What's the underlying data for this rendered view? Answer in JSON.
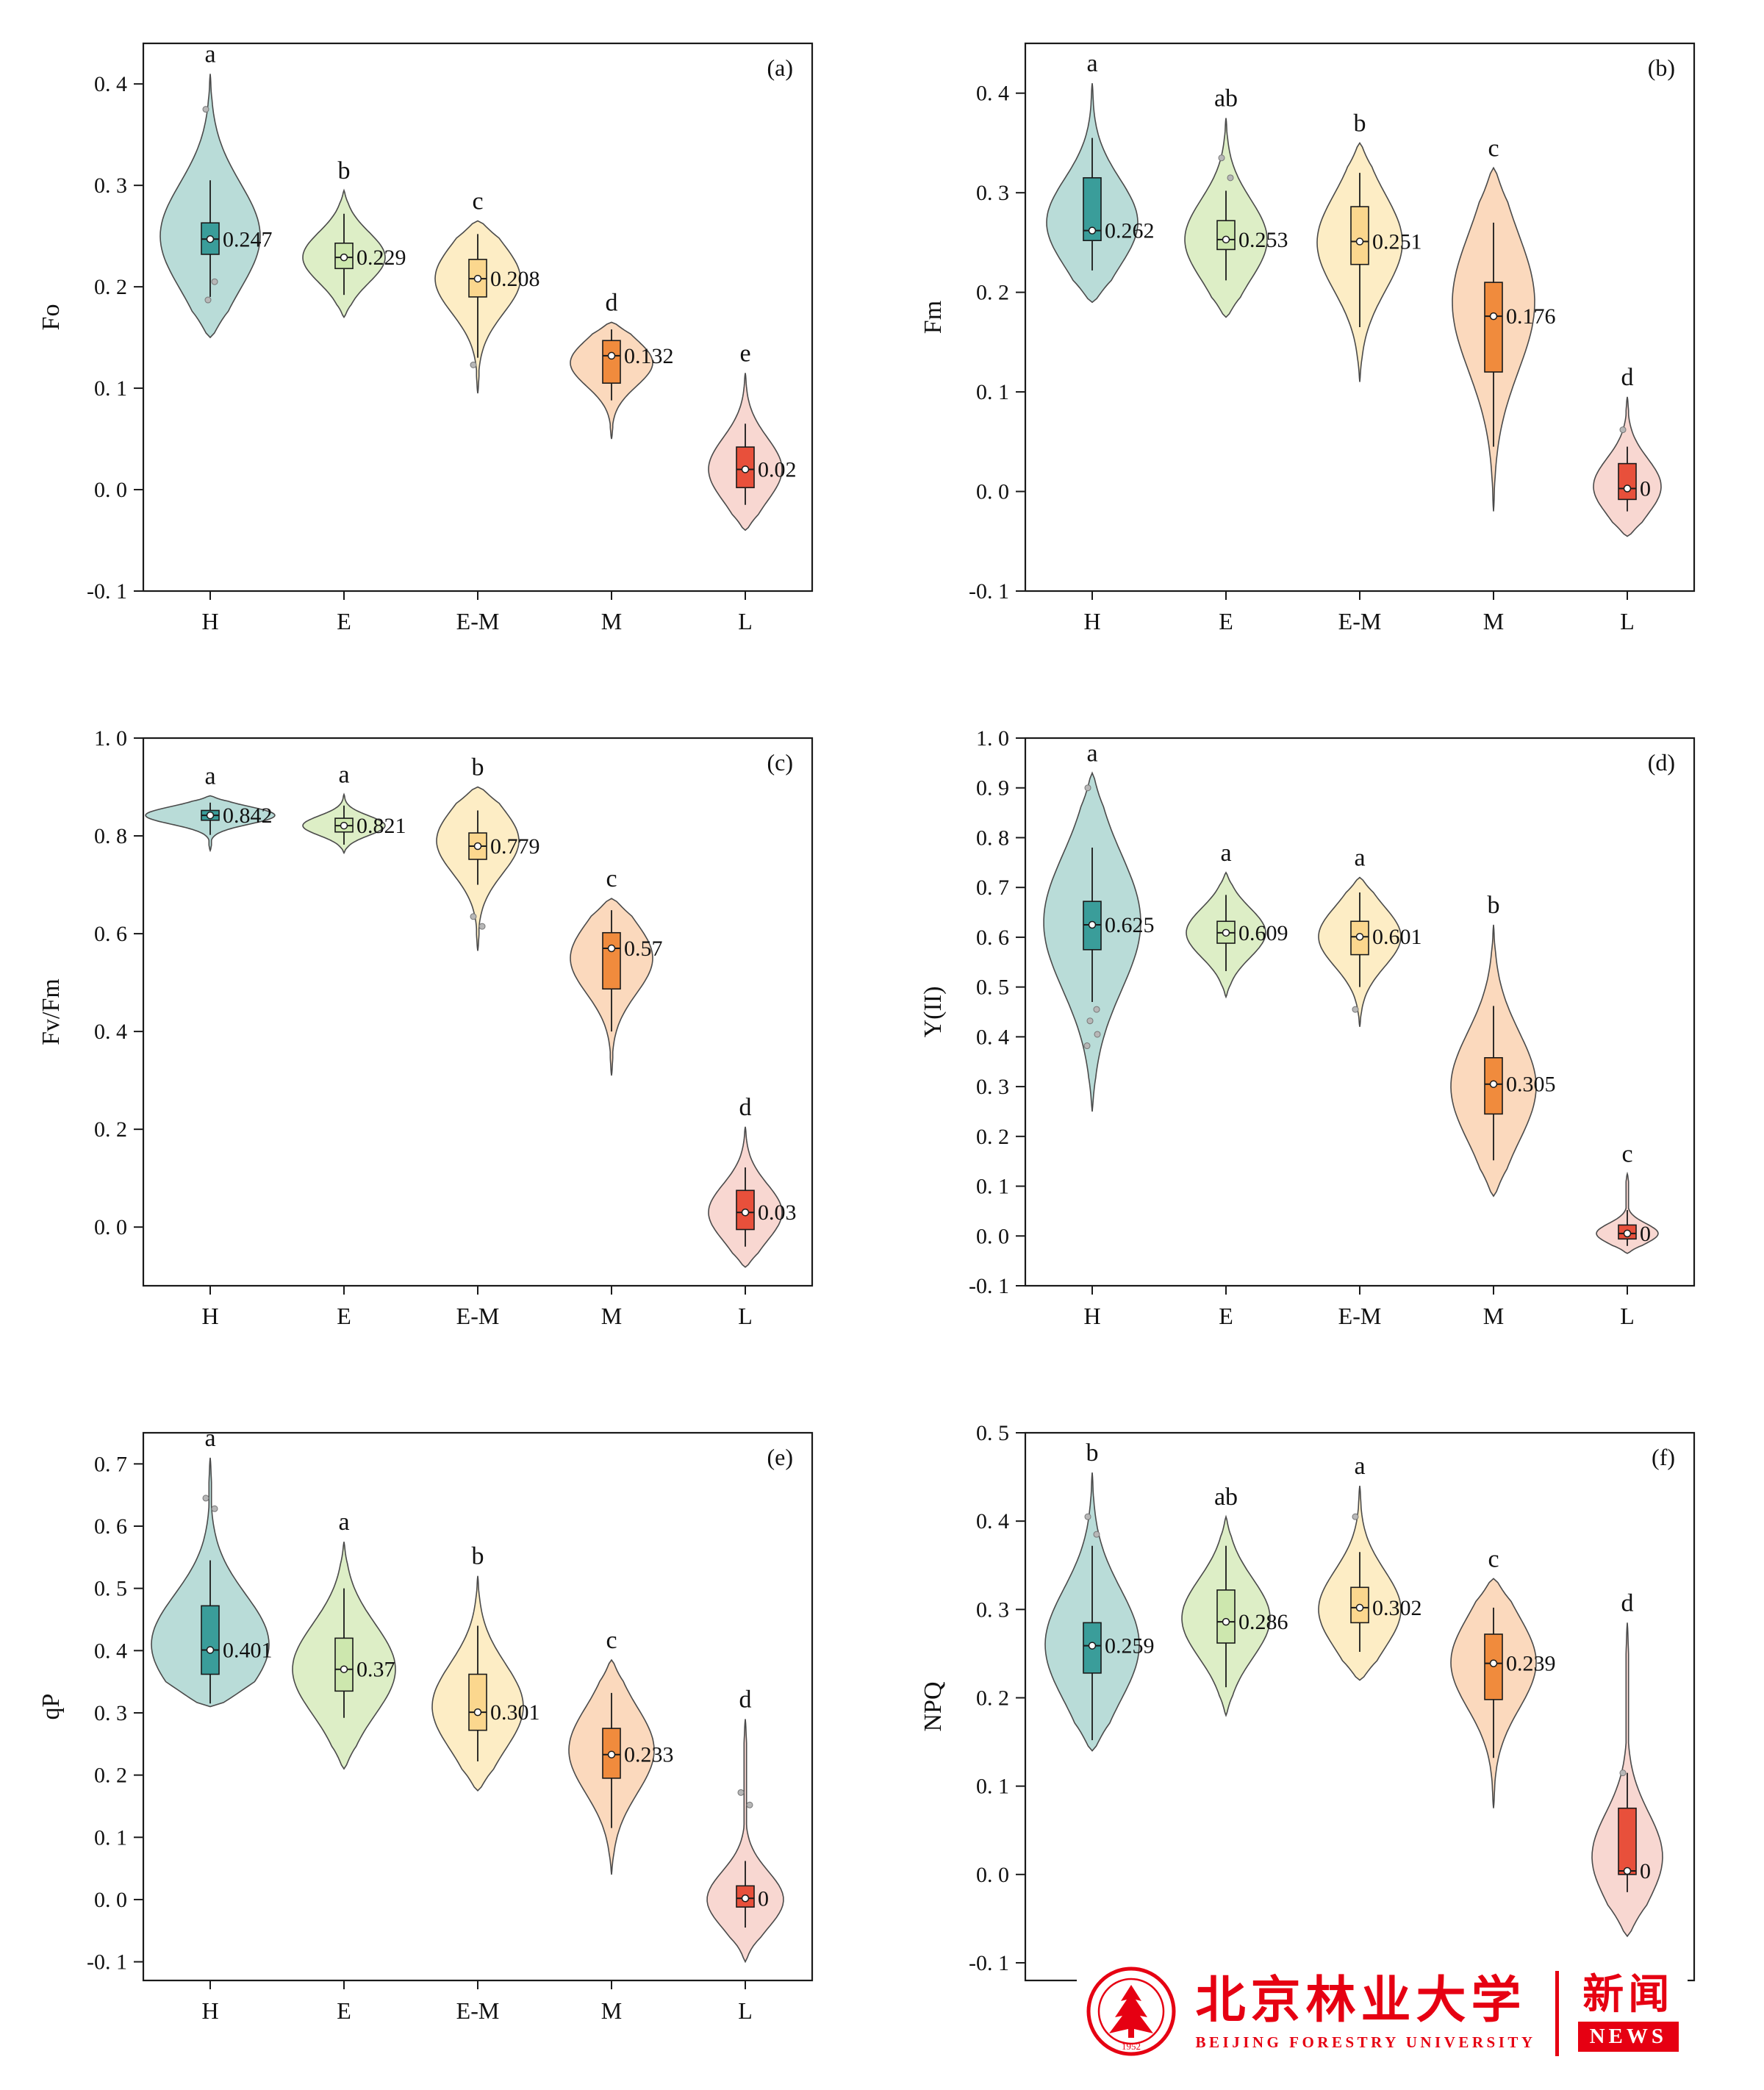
{
  "page": {
    "background": "#ffffff"
  },
  "palette": {
    "violin_fill": {
      "H": "#b9dcd8",
      "E": "#ddeec6",
      "E-M": "#fdedc5",
      "M": "#fbd9bd",
      "L": "#f8d7d1"
    },
    "box_fill": {
      "H": "#3a9d9a",
      "E": "#cde7ae",
      "E-M": "#fbd78e",
      "M": "#f08b3d",
      "L": "#e8503b"
    },
    "violin_stroke": "#4a4a4a",
    "axis_color": "#1a1a1a",
    "text_color": "#111111",
    "point_color": "#b7b7b7"
  },
  "chart_data": [
    {
      "id": "a",
      "type": "violin",
      "label": "(a)",
      "ylabel": "Fo",
      "ylim": [
        -0.1,
        0.44
      ],
      "yticks": [
        -0.1,
        0.0,
        0.1,
        0.2,
        0.3,
        0.4
      ],
      "ytick_labels": [
        "-0. 1",
        "0. 0",
        "0. 1",
        "0. 2",
        "0. 3",
        "0. 4"
      ],
      "categories": [
        "H",
        "E",
        "E-M",
        "M",
        "L"
      ],
      "groups": [
        {
          "category": "H",
          "letter": "a",
          "value": 0.247,
          "value_label": "0.247",
          "q1": 0.232,
          "q3": 0.263,
          "whisker_low": 0.19,
          "whisker_high": 0.305,
          "violin_min": 0.15,
          "violin_max": 0.41,
          "points": [
            0.375,
            0.205,
            0.187
          ],
          "hw": 68,
          "mode": 0.25
        },
        {
          "category": "E",
          "letter": "b",
          "value": 0.229,
          "value_label": "0.229",
          "q1": 0.218,
          "q3": 0.243,
          "whisker_low": 0.192,
          "whisker_high": 0.272,
          "violin_min": 0.17,
          "violin_max": 0.295,
          "points": [],
          "hw": 56
        },
        {
          "category": "E-M",
          "letter": "c",
          "value": 0.208,
          "value_label": "0.208",
          "q1": 0.19,
          "q3": 0.227,
          "whisker_low": 0.13,
          "whisker_high": 0.252,
          "violin_min": 0.095,
          "violin_max": 0.265,
          "points": [
            0.123
          ],
          "hw": 58
        },
        {
          "category": "M",
          "letter": "d",
          "value": 0.132,
          "value_label": "0.132",
          "q1": 0.105,
          "q3": 0.147,
          "whisker_low": 0.088,
          "whisker_high": 0.158,
          "violin_min": 0.05,
          "violin_max": 0.165,
          "points": [],
          "hw": 56,
          "mode": 0.125
        },
        {
          "category": "L",
          "letter": "e",
          "value": 0.02,
          "value_label": "0.02",
          "q1": 0.002,
          "q3": 0.042,
          "whisker_low": -0.015,
          "whisker_high": 0.065,
          "violin_min": -0.04,
          "violin_max": 0.115,
          "points": [],
          "hw": 50,
          "mode": 0.02
        }
      ]
    },
    {
      "id": "b",
      "type": "violin",
      "label": "(b)",
      "ylabel": "Fm",
      "ylim": [
        -0.1,
        0.45
      ],
      "yticks": [
        -0.1,
        0.0,
        0.1,
        0.2,
        0.3,
        0.4
      ],
      "ytick_labels": [
        "-0. 1",
        "0. 0",
        "0. 1",
        "0. 2",
        "0. 3",
        "0. 4"
      ],
      "categories": [
        "H",
        "E",
        "E-M",
        "M",
        "L"
      ],
      "groups": [
        {
          "category": "H",
          "letter": "a",
          "value": 0.262,
          "value_label": "0.262",
          "q1": 0.252,
          "q3": 0.315,
          "whisker_low": 0.222,
          "whisker_high": 0.355,
          "violin_min": 0.19,
          "violin_max": 0.41,
          "points": [],
          "hw": 62,
          "mode": 0.27
        },
        {
          "category": "E",
          "letter": "ab",
          "value": 0.253,
          "value_label": "0.253",
          "q1": 0.243,
          "q3": 0.272,
          "whisker_low": 0.212,
          "whisker_high": 0.302,
          "violin_min": 0.175,
          "violin_max": 0.375,
          "points": [
            0.335,
            0.315
          ],
          "hw": 56
        },
        {
          "category": "E-M",
          "letter": "b",
          "value": 0.251,
          "value_label": "0.251",
          "q1": 0.228,
          "q3": 0.286,
          "whisker_low": 0.165,
          "whisker_high": 0.32,
          "violin_min": 0.11,
          "violin_max": 0.35,
          "points": [],
          "hw": 58,
          "mode": 0.25
        },
        {
          "category": "M",
          "letter": "c",
          "value": 0.176,
          "value_label": "0.176",
          "q1": 0.12,
          "q3": 0.21,
          "whisker_low": 0.045,
          "whisker_high": 0.27,
          "violin_min": -0.02,
          "violin_max": 0.325,
          "points": [],
          "hw": 56,
          "mode": 0.19
        },
        {
          "category": "L",
          "letter": "d",
          "value": 0.003,
          "value_label": "0",
          "q1": -0.008,
          "q3": 0.028,
          "whisker_low": -0.02,
          "whisker_high": 0.045,
          "violin_min": -0.045,
          "violin_max": 0.095,
          "points": [
            0.062
          ],
          "hw": 46,
          "mode": 0.005
        }
      ]
    },
    {
      "id": "c",
      "type": "violin",
      "label": "(c)",
      "ylabel": "Fv/Fm",
      "ylim": [
        -0.12,
        1.0
      ],
      "yticks": [
        0.0,
        0.2,
        0.4,
        0.6,
        0.8,
        1.0
      ],
      "ytick_labels": [
        "0. 0",
        "0. 2",
        "0. 4",
        "0. 6",
        "0. 8",
        "1. 0"
      ],
      "categories": [
        "H",
        "E",
        "E-M",
        "M",
        "L"
      ],
      "groups": [
        {
          "category": "H",
          "letter": "a",
          "value": 0.842,
          "value_label": "0.842",
          "q1": 0.832,
          "q3": 0.852,
          "whisker_low": 0.802,
          "whisker_high": 0.868,
          "violin_min": 0.77,
          "violin_max": 0.882,
          "points": [],
          "hw": 88,
          "sigma": 0.018
        },
        {
          "category": "E",
          "letter": "a",
          "value": 0.821,
          "value_label": "0.821",
          "q1": 0.808,
          "q3": 0.836,
          "whisker_low": 0.782,
          "whisker_high": 0.862,
          "violin_min": 0.765,
          "violin_max": 0.885,
          "points": [],
          "hw": 56,
          "sigma": 0.02
        },
        {
          "category": "E-M",
          "letter": "b",
          "value": 0.779,
          "value_label": "0.779",
          "q1": 0.752,
          "q3": 0.806,
          "whisker_low": 0.7,
          "whisker_high": 0.852,
          "violin_min": 0.565,
          "violin_max": 0.9,
          "points": [
            0.635,
            0.615
          ],
          "hw": 56,
          "mode": 0.79
        },
        {
          "category": "M",
          "letter": "c",
          "value": 0.57,
          "value_label": "0.57",
          "q1": 0.487,
          "q3": 0.602,
          "whisker_low": 0.4,
          "whisker_high": 0.648,
          "violin_min": 0.31,
          "violin_max": 0.672,
          "points": [],
          "hw": 56,
          "mode": 0.55
        },
        {
          "category": "L",
          "letter": "d",
          "value": 0.03,
          "value_label": "0.03",
          "q1": -0.005,
          "q3": 0.075,
          "whisker_low": -0.04,
          "whisker_high": 0.122,
          "violin_min": -0.082,
          "violin_max": 0.205,
          "points": [],
          "hw": 50,
          "mode": 0.03
        }
      ]
    },
    {
      "id": "d",
      "type": "violin",
      "label": "(d)",
      "ylabel": "Y(II)",
      "ylim": [
        -0.1,
        1.0
      ],
      "yticks": [
        -0.1,
        0.0,
        0.1,
        0.2,
        0.3,
        0.4,
        0.5,
        0.6,
        0.7,
        0.8,
        0.9,
        1.0
      ],
      "ytick_labels": [
        "-0. 1",
        "0. 0",
        "0. 1",
        "0. 2",
        "0. 3",
        "0. 4",
        "0. 5",
        "0. 6",
        "0. 7",
        "0. 8",
        "0. 9",
        "1. 0"
      ],
      "categories": [
        "H",
        "E",
        "E-M",
        "M",
        "L"
      ],
      "groups": [
        {
          "category": "H",
          "letter": "a",
          "value": 0.625,
          "value_label": "0.625",
          "q1": 0.575,
          "q3": 0.672,
          "whisker_low": 0.47,
          "whisker_high": 0.78,
          "violin_min": 0.25,
          "violin_max": 0.93,
          "points": [
            0.9,
            0.455,
            0.432,
            0.405,
            0.382
          ],
          "hw": 66,
          "mode": 0.63
        },
        {
          "category": "E",
          "letter": "a",
          "value": 0.609,
          "value_label": "0.609",
          "q1": 0.588,
          "q3": 0.632,
          "whisker_low": 0.532,
          "whisker_high": 0.685,
          "violin_min": 0.48,
          "violin_max": 0.73,
          "points": [],
          "hw": 54
        },
        {
          "category": "E-M",
          "letter": "a",
          "value": 0.601,
          "value_label": "0.601",
          "q1": 0.565,
          "q3": 0.632,
          "whisker_low": 0.5,
          "whisker_high": 0.69,
          "violin_min": 0.42,
          "violin_max": 0.72,
          "points": [
            0.455
          ],
          "hw": 56
        },
        {
          "category": "M",
          "letter": "b",
          "value": 0.305,
          "value_label": "0.305",
          "q1": 0.245,
          "q3": 0.358,
          "whisker_low": 0.152,
          "whisker_high": 0.462,
          "violin_min": 0.08,
          "violin_max": 0.625,
          "points": [],
          "hw": 58,
          "mode": 0.3
        },
        {
          "category": "L",
          "letter": "c",
          "value": 0.005,
          "value_label": "0",
          "q1": -0.006,
          "q3": 0.022,
          "whisker_low": -0.02,
          "whisker_high": 0.052,
          "violin_min": -0.035,
          "violin_max": 0.125,
          "points": [],
          "hw": 42,
          "mode": 0.005,
          "sigma": 0.02
        }
      ]
    },
    {
      "id": "e",
      "type": "violin",
      "label": "(e)",
      "ylabel": "qP",
      "ylim": [
        -0.13,
        0.75
      ],
      "yticks": [
        -0.1,
        0.0,
        0.1,
        0.2,
        0.3,
        0.4,
        0.5,
        0.6,
        0.7
      ],
      "ytick_labels": [
        "-0. 1",
        "0. 0",
        "0. 1",
        "0. 2",
        "0. 3",
        "0. 4",
        "0. 5",
        "0. 6",
        "0. 7"
      ],
      "categories": [
        "H",
        "E",
        "E-M",
        "M",
        "L"
      ],
      "groups": [
        {
          "category": "H",
          "letter": "a",
          "value": 0.401,
          "value_label": "0.401",
          "q1": 0.362,
          "q3": 0.472,
          "whisker_low": 0.315,
          "whisker_high": 0.545,
          "violin_min": 0.31,
          "violin_max": 0.71,
          "points": [
            0.645,
            0.628
          ],
          "hw": 80,
          "mode": 0.41
        },
        {
          "category": "E",
          "letter": "a",
          "value": 0.37,
          "value_label": "0.37",
          "q1": 0.335,
          "q3": 0.42,
          "whisker_low": 0.292,
          "whisker_high": 0.5,
          "violin_min": 0.21,
          "violin_max": 0.575,
          "points": [],
          "hw": 70,
          "mode": 0.37
        },
        {
          "category": "E-M",
          "letter": "b",
          "value": 0.301,
          "value_label": "0.301",
          "q1": 0.272,
          "q3": 0.362,
          "whisker_low": 0.222,
          "whisker_high": 0.44,
          "violin_min": 0.175,
          "violin_max": 0.52,
          "points": [],
          "hw": 62,
          "mode": 0.31
        },
        {
          "category": "M",
          "letter": "c",
          "value": 0.233,
          "value_label": "0.233",
          "q1": 0.195,
          "q3": 0.275,
          "whisker_low": 0.115,
          "whisker_high": 0.332,
          "violin_min": 0.04,
          "violin_max": 0.385,
          "points": [],
          "hw": 58,
          "mode": 0.24
        },
        {
          "category": "L",
          "letter": "d",
          "value": 0.002,
          "value_label": "0",
          "q1": -0.012,
          "q3": 0.022,
          "whisker_low": -0.045,
          "whisker_high": 0.062,
          "violin_min": -0.1,
          "violin_max": 0.29,
          "points": [
            0.172,
            0.152
          ],
          "hw": 52,
          "mode": 0.0,
          "sigma": 0.045
        }
      ]
    },
    {
      "id": "f",
      "type": "violin",
      "label": "(f)",
      "ylabel": "NPQ",
      "ylim": [
        -0.12,
        0.5
      ],
      "yticks": [
        -0.1,
        0.0,
        0.1,
        0.2,
        0.3,
        0.4,
        0.5
      ],
      "ytick_labels": [
        "-0. 1",
        "0. 0",
        "0. 1",
        "0. 2",
        "0. 3",
        "0. 4",
        "0. 5"
      ],
      "categories": [
        "H",
        "E",
        "E-M",
        "M",
        "L"
      ],
      "groups": [
        {
          "category": "H",
          "letter": "b",
          "value": 0.259,
          "value_label": "0.259",
          "q1": 0.228,
          "q3": 0.285,
          "whisker_low": 0.152,
          "whisker_high": 0.372,
          "violin_min": 0.14,
          "violin_max": 0.455,
          "points": [
            0.405,
            0.385
          ],
          "hw": 64,
          "mode": 0.26
        },
        {
          "category": "E",
          "letter": "ab",
          "value": 0.286,
          "value_label": "0.286",
          "q1": 0.262,
          "q3": 0.322,
          "whisker_low": 0.212,
          "whisker_high": 0.372,
          "violin_min": 0.18,
          "violin_max": 0.405,
          "points": [],
          "hw": 60,
          "mode": 0.29
        },
        {
          "category": "E-M",
          "letter": "a",
          "value": 0.302,
          "value_label": "0.302",
          "q1": 0.285,
          "q3": 0.325,
          "whisker_low": 0.252,
          "whisker_high": 0.365,
          "violin_min": 0.22,
          "violin_max": 0.44,
          "points": [
            0.405
          ],
          "hw": 56,
          "mode": 0.3
        },
        {
          "category": "M",
          "letter": "c",
          "value": 0.239,
          "value_label": "0.239",
          "q1": 0.198,
          "q3": 0.272,
          "whisker_low": 0.132,
          "whisker_high": 0.302,
          "violin_min": 0.075,
          "violin_max": 0.335,
          "points": [],
          "hw": 58,
          "mode": 0.24
        },
        {
          "category": "L",
          "letter": "d",
          "value": 0.004,
          "value_label": "0",
          "q1": 0.0,
          "q3": 0.075,
          "whisker_low": -0.02,
          "whisker_high": 0.115,
          "violin_min": -0.07,
          "violin_max": 0.285,
          "points": [
            0.115
          ],
          "hw": 48,
          "mode": 0.02,
          "sigma": 0.05
        }
      ]
    }
  ],
  "watermark": {
    "univ_cn": "北京林业大学",
    "univ_en": "BEIJING FORESTRY UNIVERSITY",
    "news_cn": "新闻",
    "news_en": "NEWS",
    "logo_year": "1952",
    "color": "#e60012"
  }
}
